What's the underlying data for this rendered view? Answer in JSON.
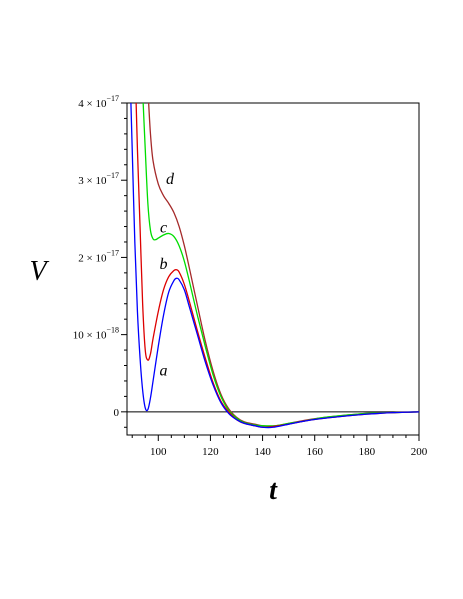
{
  "chart_data": {
    "type": "line",
    "title": "",
    "xlabel": "t",
    "ylabel": "V",
    "xlim": [
      88,
      200
    ],
    "ylim": [
      -3e-18,
      4e-17
    ],
    "grid": false,
    "xticks": [
      {
        "value": 100,
        "label": "100"
      },
      {
        "value": 120,
        "label": "120"
      },
      {
        "value": 140,
        "label": "140"
      },
      {
        "value": 160,
        "label": "160"
      },
      {
        "value": 180,
        "label": "180"
      },
      {
        "value": 200,
        "label": "200"
      }
    ],
    "yticks": [
      {
        "value": 0,
        "label": "0",
        "exp": ""
      },
      {
        "value": 1e-17,
        "label": "10 × 10",
        "exp": "−18"
      },
      {
        "value": 2e-17,
        "label": "2 × 10",
        "exp": "−17"
      },
      {
        "value": 3e-17,
        "label": "3 × 10",
        "exp": "−17"
      },
      {
        "value": 4e-17,
        "label": "4 × 10",
        "exp": "−17"
      }
    ],
    "series": [
      {
        "name": "a",
        "color": "#0000ff",
        "points": [
          [
            89.5,
            4e-17
          ],
          [
            90,
            3.4e-17
          ],
          [
            91,
            2.2e-17
          ],
          [
            92,
            1.3e-17
          ],
          [
            93,
            7e-18
          ],
          [
            94,
            2.8e-18
          ],
          [
            95,
            5e-19
          ],
          [
            96,
            3e-19
          ],
          [
            97,
            1.8e-18
          ],
          [
            98,
            4e-18
          ],
          [
            100,
            8.5e-18
          ],
          [
            102,
            1.25e-17
          ],
          [
            104,
            1.55e-17
          ],
          [
            106,
            1.7e-17
          ],
          [
            107,
            1.73e-17
          ],
          [
            108,
            1.71e-17
          ],
          [
            110,
            1.58e-17
          ],
          [
            112,
            1.35e-17
          ],
          [
            115,
            1e-17
          ],
          [
            118,
            6.5e-18
          ],
          [
            121,
            3.5e-18
          ],
          [
            124,
            1.2e-18
          ],
          [
            127,
            -2e-19
          ],
          [
            130,
            -1e-18
          ],
          [
            133,
            -1.5e-18
          ],
          [
            137,
            -1.8e-18
          ],
          [
            140,
            -2e-18
          ],
          [
            144,
            -2e-18
          ],
          [
            150,
            -1.6e-18
          ],
          [
            156,
            -1.2e-18
          ],
          [
            162,
            -9e-19
          ],
          [
            170,
            -6e-19
          ],
          [
            180,
            -3e-19
          ],
          [
            190,
            -1e-19
          ],
          [
            200,
            0
          ]
        ]
      },
      {
        "name": "b",
        "color": "#dd0000",
        "points": [
          [
            91.5,
            4e-17
          ],
          [
            92,
            3.4e-17
          ],
          [
            93,
            2.4e-17
          ],
          [
            94,
            1.4e-17
          ],
          [
            95,
            8e-18
          ],
          [
            96,
            6.7e-18
          ],
          [
            97,
            7.5e-18
          ],
          [
            98,
            9.5e-18
          ],
          [
            100,
            1.3e-17
          ],
          [
            102,
            1.58e-17
          ],
          [
            104,
            1.75e-17
          ],
          [
            106,
            1.83e-17
          ],
          [
            107,
            1.84e-17
          ],
          [
            108,
            1.81e-17
          ],
          [
            110,
            1.65e-17
          ],
          [
            112,
            1.42e-17
          ],
          [
            115,
            1.05e-17
          ],
          [
            118,
            7e-18
          ],
          [
            121,
            3.8e-18
          ],
          [
            124,
            1.4e-18
          ],
          [
            127,
            0
          ],
          [
            130,
            -1e-18
          ],
          [
            133,
            -1.5e-18
          ],
          [
            137,
            -1.8e-18
          ],
          [
            140,
            -2e-18
          ],
          [
            144,
            -1.9e-18
          ],
          [
            150,
            -1.6e-18
          ],
          [
            156,
            -1.2e-18
          ],
          [
            162,
            -9e-19
          ],
          [
            170,
            -6e-19
          ],
          [
            180,
            -3e-19
          ],
          [
            190,
            -1e-19
          ],
          [
            200,
            0
          ]
        ]
      },
      {
        "name": "c",
        "color": "#00dd00",
        "points": [
          [
            94.2,
            4e-17
          ],
          [
            95,
            3.4e-17
          ],
          [
            96,
            2.7e-17
          ],
          [
            97,
            2.35e-17
          ],
          [
            98,
            2.24e-17
          ],
          [
            99,
            2.23e-17
          ],
          [
            100,
            2.25e-17
          ],
          [
            102,
            2.29e-17
          ],
          [
            104,
            2.31e-17
          ],
          [
            106,
            2.27e-17
          ],
          [
            108,
            2.15e-17
          ],
          [
            110,
            1.95e-17
          ],
          [
            112,
            1.68e-17
          ],
          [
            115,
            1.25e-17
          ],
          [
            118,
            8.5e-18
          ],
          [
            121,
            4.8e-18
          ],
          [
            124,
            2e-18
          ],
          [
            127,
            2e-19
          ],
          [
            130,
            -8e-19
          ],
          [
            133,
            -1.4e-18
          ],
          [
            137,
            -1.7e-18
          ],
          [
            140,
            -1.8e-18
          ],
          [
            145,
            -1.8e-18
          ],
          [
            150,
            -1.5e-18
          ],
          [
            156,
            -1.2e-18
          ],
          [
            162,
            -8e-19
          ],
          [
            170,
            -5e-19
          ],
          [
            180,
            -2e-19
          ],
          [
            190,
            -1e-19
          ],
          [
            200,
            0
          ]
        ]
      },
      {
        "name": "d",
        "color": "#a52a2a",
        "points": [
          [
            96.3,
            4e-17
          ],
          [
            97,
            3.6e-17
          ],
          [
            98,
            3.25e-17
          ],
          [
            100,
            2.95e-17
          ],
          [
            102,
            2.8e-17
          ],
          [
            104,
            2.7e-17
          ],
          [
            106,
            2.58e-17
          ],
          [
            108,
            2.4e-17
          ],
          [
            110,
            2.15e-17
          ],
          [
            112,
            1.85e-17
          ],
          [
            115,
            1.38e-17
          ],
          [
            118,
            9.2e-18
          ],
          [
            121,
            5.3e-18
          ],
          [
            124,
            2.3e-18
          ],
          [
            127,
            4e-19
          ],
          [
            130,
            -7e-19
          ],
          [
            133,
            -1.3e-18
          ],
          [
            137,
            -1.6e-18
          ],
          [
            140,
            -1.8e-18
          ],
          [
            145,
            -1.8e-18
          ],
          [
            150,
            -1.5e-18
          ],
          [
            156,
            -1.1e-18
          ],
          [
            162,
            -8e-19
          ],
          [
            170,
            -5e-19
          ],
          [
            180,
            -2e-19
          ],
          [
            190,
            -1e-19
          ],
          [
            200,
            0
          ]
        ]
      }
    ],
    "annotations": [
      {
        "text": "a",
        "x": 102,
        "y": 4.7e-18
      },
      {
        "text": "b",
        "x": 102,
        "y": 1.85e-17
      },
      {
        "text": "c",
        "x": 102,
        "y": 2.32e-17
      },
      {
        "text": "d",
        "x": 104.5,
        "y": 2.95e-17
      }
    ]
  }
}
